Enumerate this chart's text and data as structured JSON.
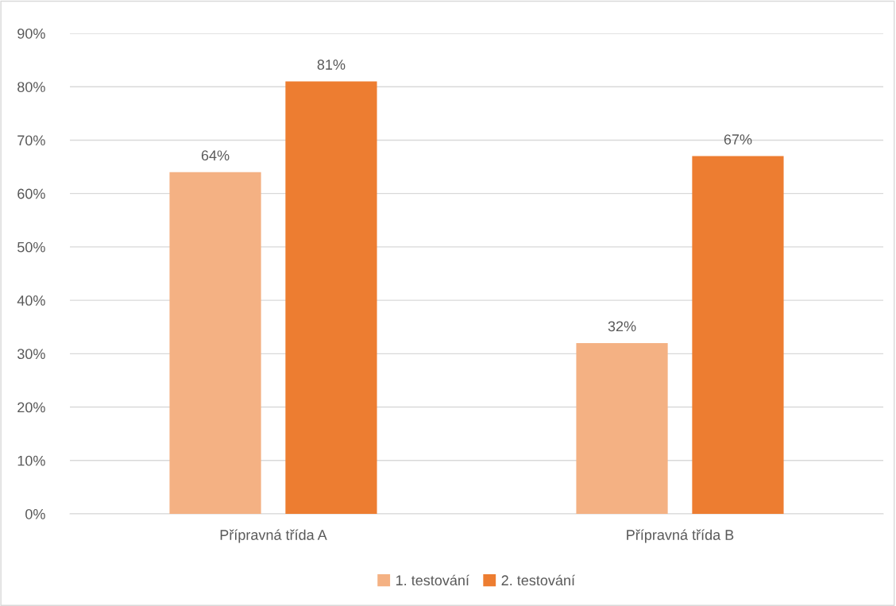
{
  "chart_data": {
    "type": "bar",
    "categories": [
      "Přípravná třída A",
      "Přípravná třída B"
    ],
    "series": [
      {
        "name": "1. testování",
        "color": "#f4b183",
        "values": [
          64,
          32
        ],
        "value_labels": [
          "64%",
          "32%"
        ]
      },
      {
        "name": "2. testování",
        "color": "#ed7d31",
        "values": [
          81,
          67
        ],
        "value_labels": [
          "81%",
          "67%"
        ]
      }
    ],
    "ylim": [
      0,
      90
    ],
    "yticks": [
      {
        "value": 0,
        "label": "0%"
      },
      {
        "value": 10,
        "label": "10%"
      },
      {
        "value": 20,
        "label": "20%"
      },
      {
        "value": 30,
        "label": "30%"
      },
      {
        "value": 40,
        "label": "40%"
      },
      {
        "value": 50,
        "label": "50%"
      },
      {
        "value": 60,
        "label": "60%"
      },
      {
        "value": 70,
        "label": "70%"
      },
      {
        "value": 80,
        "label": "80%"
      },
      {
        "value": 90,
        "label": "90%"
      }
    ],
    "grid": "y",
    "legend": "bottom"
  }
}
